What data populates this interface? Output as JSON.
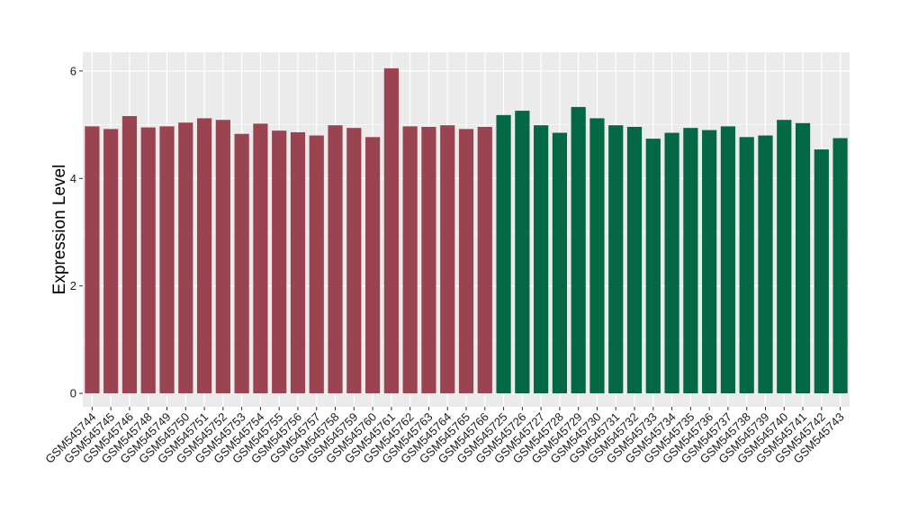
{
  "chart_data": {
    "type": "bar",
    "title": "",
    "xlabel": "",
    "ylabel": "Expression Level",
    "ylim": [
      -0.25,
      6.35
    ],
    "yticks": [
      0,
      2,
      4,
      6
    ],
    "grid": true,
    "legend": "none",
    "categories": [
      "GSM545744",
      "GSM545745",
      "GSM545746",
      "GSM545748",
      "GSM545749",
      "GSM545750",
      "GSM545751",
      "GSM545752",
      "GSM545753",
      "GSM545754",
      "GSM545755",
      "GSM545756",
      "GSM545757",
      "GSM545758",
      "GSM545759",
      "GSM545760",
      "GSM545761",
      "GSM545762",
      "GSM545763",
      "GSM545764",
      "GSM545765",
      "GSM545766",
      "GSM545725",
      "GSM545726",
      "GSM545727",
      "GSM545728",
      "GSM545729",
      "GSM545730",
      "GSM545731",
      "GSM545732",
      "GSM545733",
      "GSM545734",
      "GSM545735",
      "GSM545736",
      "GSM545737",
      "GSM545738",
      "GSM545739",
      "GSM545740",
      "GSM545741",
      "GSM545742",
      "GSM545743"
    ],
    "values": [
      4.97,
      4.92,
      5.16,
      4.95,
      4.97,
      5.04,
      5.12,
      5.09,
      4.83,
      5.02,
      4.89,
      4.86,
      4.8,
      4.99,
      4.94,
      4.77,
      6.05,
      4.97,
      4.96,
      4.99,
      4.92,
      4.96,
      5.18,
      5.26,
      4.99,
      4.85,
      5.33,
      5.12,
      4.99,
      4.96,
      4.74,
      4.85,
      4.94,
      4.9,
      4.97,
      4.77,
      4.8,
      5.09,
      5.03,
      4.54,
      4.75
    ],
    "group_sizes": [
      22,
      19
    ],
    "colors": {
      "group1": "#9a4451",
      "group2": "#056845",
      "panel_bg": "#ebebeb",
      "grid": "#ffffff"
    }
  }
}
